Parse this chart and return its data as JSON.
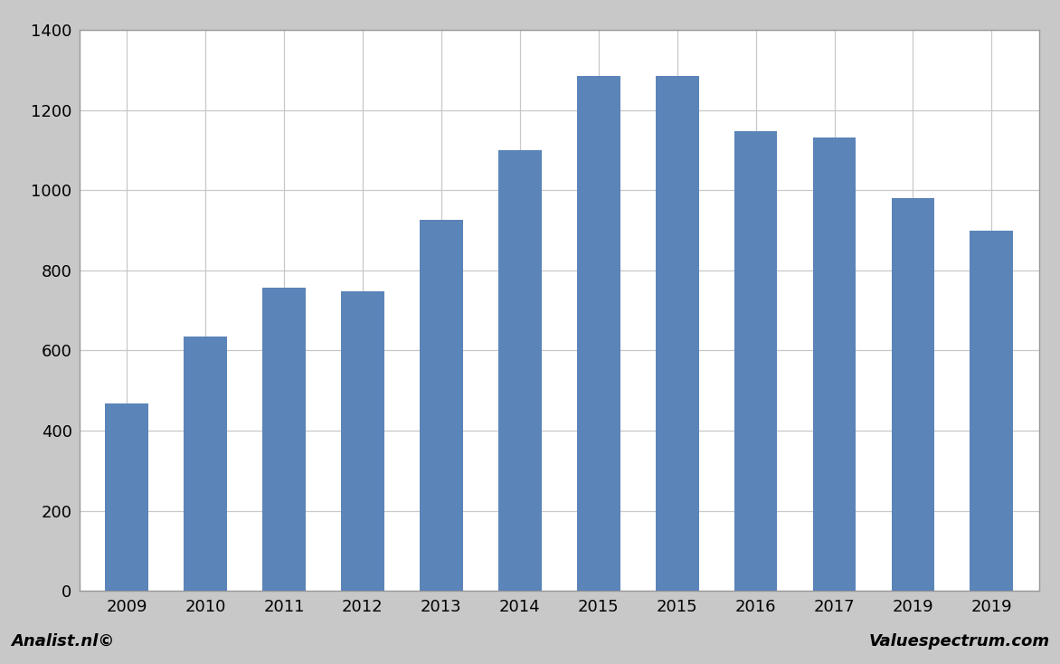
{
  "x_labels": [
    "2009",
    "2010",
    "2011",
    "2012",
    "2013",
    "2014",
    "2015",
    "2015",
    "2016",
    "2017",
    "2019",
    "2019"
  ],
  "values": [
    468,
    635,
    757,
    748,
    927,
    1100,
    1285,
    1285,
    1147,
    1132,
    980,
    900
  ],
  "bar_color": "#5b84b8",
  "plot_bg_color": "#ffffff",
  "outer_bg_color": "#c8c8c8",
  "ylim": [
    0,
    1400
  ],
  "yticks": [
    0,
    200,
    400,
    600,
    800,
    1000,
    1200,
    1400
  ],
  "grid_color": "#c8c8c8",
  "footer_left": "Analist.nl©",
  "footer_right": "Valuespectrum.com",
  "footer_fontsize": 13,
  "bar_width": 0.55
}
